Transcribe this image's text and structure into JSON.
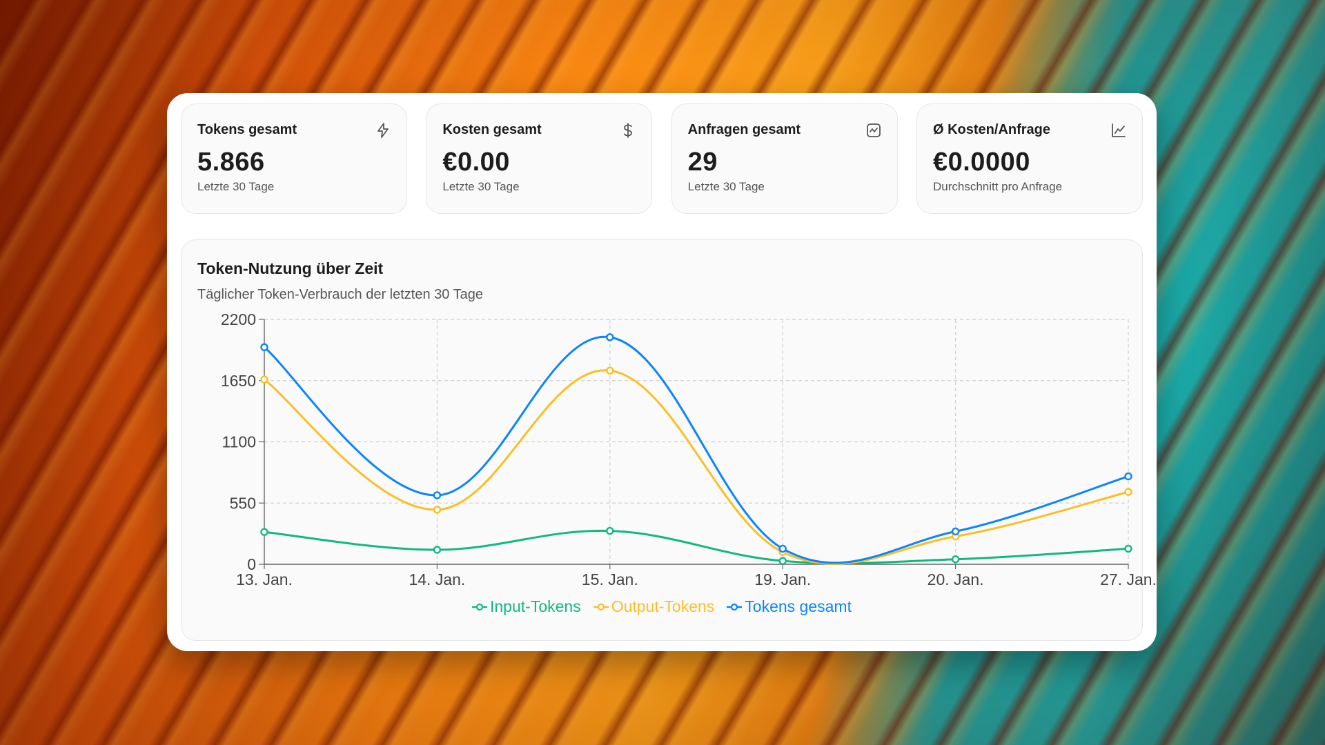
{
  "cards": [
    {
      "title": "Tokens gesamt",
      "value": "5.866",
      "sub": "Letzte 30 Tage",
      "icon": "lightning-icon"
    },
    {
      "title": "Kosten gesamt",
      "value": "€0.00",
      "sub": "Letzte 30 Tage",
      "icon": "dollar-icon"
    },
    {
      "title": "Anfragen gesamt",
      "value": "29",
      "sub": "Letzte 30 Tage",
      "icon": "activity-icon"
    },
    {
      "title": "Ø Kosten/Anfrage",
      "value": "€0.0000",
      "sub": "Durchschnitt pro Anfrage",
      "icon": "line-chart-icon"
    }
  ],
  "chart": {
    "title": "Token-Nutzung über Zeit",
    "subtitle": "Täglicher Token-Verbrauch der letzten 30 Tage"
  },
  "chart_data": {
    "type": "line",
    "categories": [
      "13. Jan.",
      "14. Jan.",
      "15. Jan.",
      "19. Jan.",
      "20. Jan.",
      "27. Jan."
    ],
    "ylim": [
      0,
      2200
    ],
    "yticks": [
      0,
      550,
      1100,
      1650,
      2200
    ],
    "grid": true,
    "legend_position": "bottom",
    "series": [
      {
        "name": "Input-Tokens",
        "color": "#10b981",
        "values": [
          290,
          130,
          300,
          30,
          45,
          140
        ]
      },
      {
        "name": "Output-Tokens",
        "color": "#fbbf24",
        "values": [
          1660,
          490,
          1740,
          110,
          250,
          650
        ]
      },
      {
        "name": "Tokens gesamt",
        "color": "#0a84ff",
        "values": [
          1950,
          620,
          2040,
          140,
          295,
          790
        ]
      }
    ]
  }
}
